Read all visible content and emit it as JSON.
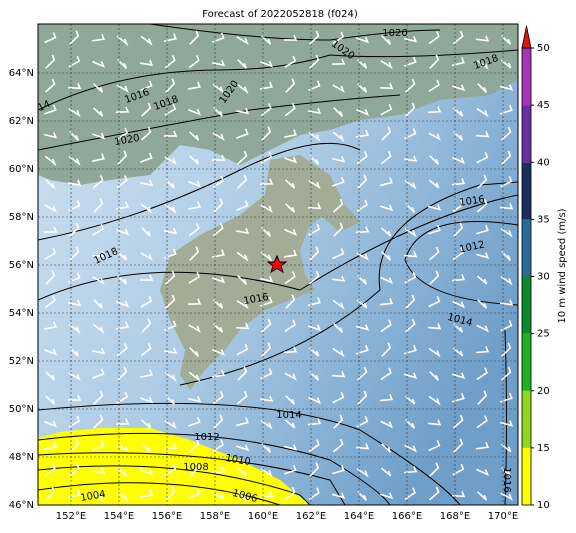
{
  "map": {
    "title": "Forecast of 2022052818 (f024)",
    "lat_labels": [
      "46°N",
      "48°N",
      "50°N",
      "52°N",
      "54°N",
      "56°N",
      "58°N",
      "60°N",
      "62°N",
      "64°N"
    ],
    "lon_labels": [
      "152°E",
      "154°E",
      "156°E",
      "158°E",
      "160°E",
      "162°E",
      "164°E",
      "166°E",
      "168°E",
      "170°E"
    ],
    "contour_labels": [
      1020,
      1020,
      1018,
      14,
      1016,
      1018,
      1020,
      1020,
      1016,
      1012,
      1018,
      1016,
      1014,
      1014,
      1012,
      1010,
      1008,
      1006,
      1004,
      1016
    ]
  },
  "colorbar": {
    "label": "10 m wind speed (m/s)",
    "ticks": [
      10,
      15,
      20,
      25,
      30,
      35,
      40,
      45,
      50
    ],
    "colors": [
      "#ffff00",
      "#8fd61c",
      "#1fb21f",
      "#0c8a2a",
      "#2a6a9a",
      "#1b2e5c",
      "#6a2ea0",
      "#a733b8"
    ],
    "extend_color": "#e0160c"
  }
}
